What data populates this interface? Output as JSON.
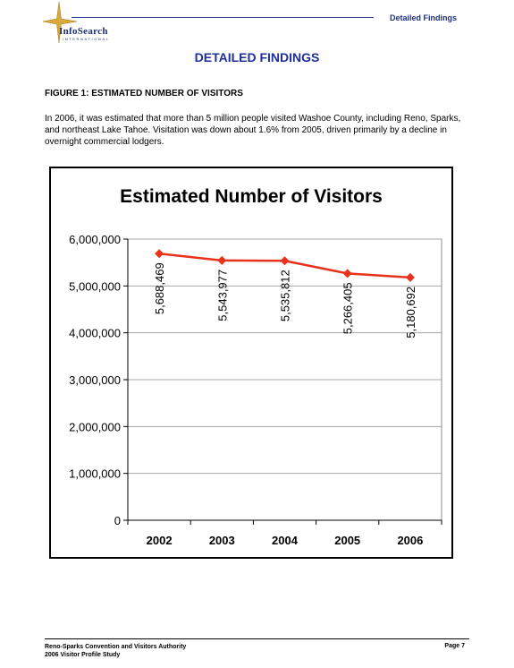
{
  "header": {
    "logo_text": "InfoSearch",
    "logo_subtext": "INTERNATIONAL",
    "section": "Detailed Findings"
  },
  "page_title": "DETAILED FINDINGS",
  "figure_title": "FIGURE 1: ESTIMATED NUMBER OF VISITORS",
  "paragraph": "In 2006, it was estimated that more than 5 million people visited Washoe County, including Reno, Sparks, and northeast Lake Tahoe.  Visitation was down about 1.6% from 2005, driven primarily by a decline in overnight commercial lodgers.",
  "chart_data": {
    "type": "line",
    "title": "Estimated Number of Visitors",
    "xlabel": "",
    "ylabel": "",
    "categories": [
      "2002",
      "2003",
      "2004",
      "2005",
      "2006"
    ],
    "series": [
      {
        "values": [
          5688469,
          5543977,
          5535812,
          5266405,
          5180692
        ],
        "color": "#e8321c"
      }
    ],
    "data_labels": [
      "5,688,469",
      "5,543,977",
      "5,535,812",
      "5,266,405",
      "5,180,692"
    ],
    "ylim": [
      0,
      6000000
    ],
    "yticks": [
      0,
      1000000,
      2000000,
      3000000,
      4000000,
      5000000,
      6000000
    ],
    "ytick_labels": [
      "0",
      "1,000,000",
      "2,000,000",
      "3,000,000",
      "4,000,000",
      "5,000,000",
      "6,000,000"
    ],
    "grid": true,
    "legend": "none"
  },
  "footer": {
    "org": "Reno-Sparks Convention and Visitors Authority",
    "study": "2006 Visitor Profile Study",
    "page": "Page 7"
  },
  "colors": {
    "brand_blue": "#1f2f9a",
    "line": "#e8321c",
    "star": "#d9a93a"
  }
}
